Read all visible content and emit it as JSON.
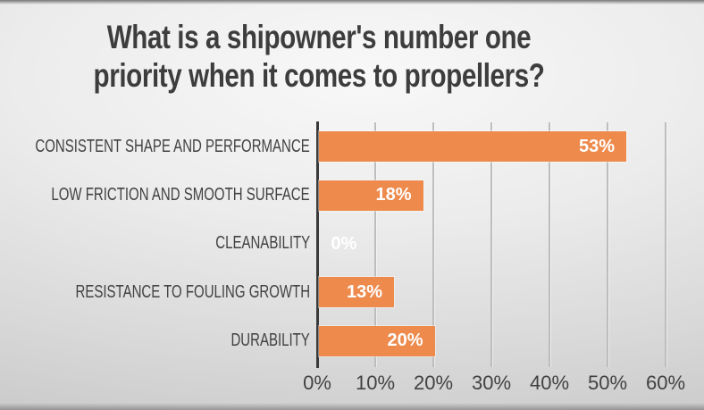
{
  "title": {
    "line1": "What is a shipowner's number one",
    "line2": "priority when it comes to propellers?"
  },
  "chart_data": {
    "type": "bar",
    "orientation": "horizontal",
    "title": "What is a shipowner's number one priority when it comes to propellers?",
    "categories": [
      "CONSISTENT SHAPE AND PERFORMANCE",
      "LOW FRICTION AND SMOOTH SURFACE",
      "CLEANABILITY",
      "RESISTANCE TO FOULING GROWTH",
      "DURABILITY"
    ],
    "values": [
      53,
      18,
      0,
      13,
      20
    ],
    "data_labels": [
      "53%",
      "18%",
      "0%",
      "13%",
      "20%"
    ],
    "x_ticks": [
      "0%",
      "10%",
      "20%",
      "30%",
      "40%",
      "50%",
      "60%"
    ],
    "x_tick_values": [
      0,
      10,
      20,
      30,
      40,
      50,
      60
    ],
    "xlim": [
      0,
      60
    ],
    "xlabel": "",
    "ylabel": "",
    "grid": true,
    "legend": false,
    "bar_color": "#ED8A4C",
    "value_label_color": "#FFFFFF",
    "axis_color": "#3A3A3A",
    "gridline_color": "#BDBDBD",
    "text_color": "#424242",
    "title_color": "#3D3D3D"
  }
}
